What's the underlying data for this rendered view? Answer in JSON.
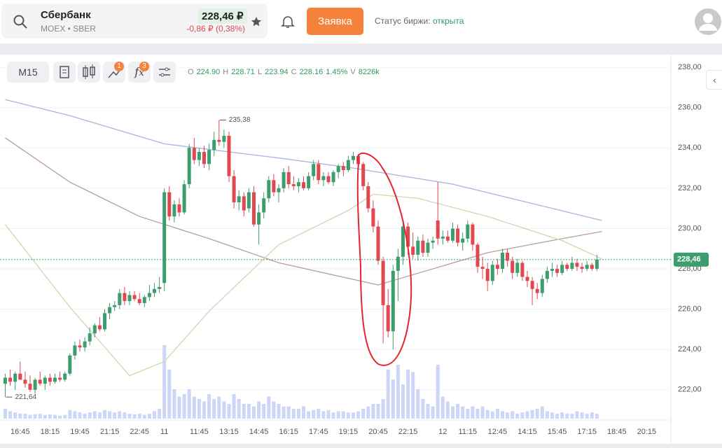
{
  "header": {
    "name": "Сбербанк",
    "ticker": "MOEX • SBER",
    "price": "228,46 ₽",
    "change": "-0,86 ₽ (0,38%)",
    "button": "Заявка",
    "status_label": "Статус биржи:",
    "status_value": "открыта"
  },
  "toolbar": {
    "interval": "M15",
    "badges": [
      "1",
      "3"
    ]
  },
  "legend": {
    "items": [
      {
        "key": "O",
        "value": "224.90"
      },
      {
        "key": "H",
        "value": "228.71"
      },
      {
        "key": "L",
        "value": "223.94"
      },
      {
        "key": "C",
        "value": "228.16"
      }
    ],
    "change": "1.45%",
    "volume_key": "V",
    "volume": "8226k"
  },
  "chart_data": {
    "type": "candlestick",
    "categories": [
      null,
      null,
      null,
      "16:45",
      null,
      null,
      null,
      null,
      null,
      "18:15",
      null,
      null,
      null,
      null,
      null,
      "19:45",
      null,
      null,
      null,
      null,
      null,
      "21:15",
      null,
      null,
      null,
      null,
      null,
      "22:45",
      null,
      null,
      null,
      null,
      "11",
      null,
      null,
      null,
      null,
      null,
      null,
      "11:45",
      null,
      null,
      null,
      null,
      null,
      "13:15",
      null,
      null,
      null,
      null,
      null,
      "14:45",
      null,
      null,
      null,
      null,
      null,
      "16:15",
      null,
      null,
      null,
      null,
      null,
      "17:45",
      null,
      null,
      null,
      null,
      null,
      "19:15",
      null,
      null,
      null,
      null,
      null,
      "20:45",
      null,
      null,
      null,
      null,
      null,
      "22:15",
      null,
      null,
      null,
      null,
      null,
      null,
      "12",
      null,
      null,
      null,
      null,
      "11:15",
      null,
      null,
      null,
      null,
      null,
      "12:45",
      null,
      null,
      null,
      null,
      null,
      "14:15",
      null,
      null,
      null,
      null,
      null,
      "15:45",
      null,
      null,
      null,
      null,
      null,
      "17:15",
      null,
      null,
      null,
      null,
      null,
      "18:45",
      null,
      null,
      null,
      null,
      null,
      "20:15",
      null,
      null,
      null,
      null
    ],
    "open": [
      222.3,
      222.6,
      222.4,
      222.8,
      222.5,
      222.3,
      222.0,
      222.5,
      222.3,
      222.6,
      222.4,
      222.6,
      222.5,
      222.8,
      223.7,
      224.2,
      224.1,
      224.4,
      224.8,
      225.2,
      225.0,
      225.8,
      226.1,
      226.2,
      226.8,
      226.4,
      226.7,
      226.5,
      226.3,
      226.6,
      226.8,
      227.0,
      227.3,
      231.8,
      230.6,
      231.2,
      230.8,
      232.2,
      234.0,
      233.4,
      233.8,
      233.2,
      233.9,
      234.4,
      234.3,
      234.6,
      232.6,
      231.3,
      231.6,
      231.0,
      231.8,
      230.2,
      230.8,
      231.5,
      232.4,
      231.8,
      232.0,
      232.8,
      232.2,
      232.1,
      232.3,
      232.0,
      232.6,
      233.2,
      232.4,
      232.6,
      232.3,
      232.8,
      233.1,
      232.9,
      233.4,
      233.6,
      233.2,
      232.1,
      231.0,
      230.1,
      228.4,
      226.2,
      224.9,
      227.9,
      228.6,
      230.1,
      229.1,
      228.7,
      229.4,
      228.8,
      229.3,
      230.4,
      229.5,
      229.6,
      229.4,
      230.0,
      229.3,
      229.5,
      230.2,
      229.2,
      228.1,
      228.0,
      227.4,
      228.2,
      228.0,
      228.8,
      228.4,
      227.8,
      228.3,
      227.6,
      227.4,
      227.0,
      226.8,
      227.5,
      227.9,
      228.0,
      227.8,
      228.2,
      228.0,
      228.3,
      228.1,
      228.0,
      228.2,
      228.0,
      null,
      null,
      null,
      null,
      null,
      null,
      null,
      null,
      null,
      null,
      null,
      null,
      null,
      null
    ],
    "high": [
      222.8,
      223.0,
      222.9,
      223.4,
      222.9,
      222.7,
      222.6,
      222.9,
      222.7,
      222.8,
      222.8,
      222.9,
      222.9,
      223.8,
      224.4,
      224.5,
      224.6,
      225.1,
      225.3,
      225.6,
      226.0,
      226.3,
      226.4,
      227.0,
      227.1,
      226.9,
      226.9,
      226.8,
      226.7,
      227.2,
      227.3,
      227.6,
      232.0,
      232.1,
      231.4,
      231.5,
      232.4,
      234.2,
      234.5,
      234.0,
      234.1,
      234.2,
      234.8,
      235.38,
      234.9,
      234.8,
      232.9,
      231.9,
      231.8,
      232.0,
      232.1,
      231.2,
      231.8,
      232.6,
      232.7,
      232.2,
      233.0,
      233.1,
      232.6,
      232.5,
      232.6,
      232.8,
      233.4,
      233.4,
      232.8,
      232.8,
      232.9,
      233.2,
      233.3,
      233.6,
      233.8,
      233.7,
      233.3,
      232.3,
      231.4,
      230.4,
      228.6,
      227.0,
      228.2,
      229.0,
      230.4,
      230.3,
      229.8,
      229.6,
      229.7,
      229.5,
      229.6,
      232.3,
      229.9,
      229.9,
      230.3,
      230.2,
      229.8,
      230.4,
      230.3,
      229.3,
      228.6,
      228.3,
      228.4,
      228.5,
      229.0,
      229.0,
      228.6,
      228.5,
      228.4,
      227.9,
      227.6,
      227.3,
      227.7,
      228.1,
      228.3,
      228.2,
      228.4,
      228.3,
      228.6,
      228.5,
      228.3,
      228.4,
      228.3,
      228.7,
      null,
      null,
      null,
      null,
      null,
      null,
      null,
      null,
      null,
      null,
      null,
      null,
      null,
      null
    ],
    "low": [
      221.64,
      222.2,
      222.0,
      222.5,
      222.1,
      221.9,
      221.8,
      222.2,
      222.0,
      222.2,
      222.3,
      222.4,
      222.4,
      222.7,
      223.5,
      223.9,
      223.9,
      224.2,
      224.6,
      224.9,
      224.9,
      225.5,
      225.9,
      226.0,
      226.2,
      226.2,
      226.4,
      226.2,
      226.1,
      226.4,
      226.6,
      226.8,
      226.9,
      230.4,
      230.3,
      230.6,
      230.7,
      232.0,
      233.2,
      233.1,
      233.0,
      232.9,
      233.6,
      234.1,
      234.0,
      232.3,
      231.0,
      230.9,
      230.6,
      230.8,
      230.1,
      229.2,
      230.5,
      231.3,
      231.6,
      231.3,
      231.8,
      232.0,
      231.9,
      231.8,
      231.9,
      231.9,
      232.4,
      232.2,
      232.1,
      232.2,
      232.1,
      232.5,
      232.6,
      232.8,
      233.2,
      233.1,
      231.9,
      230.8,
      229.8,
      228.2,
      224.3,
      224.6,
      224.0,
      226.4,
      228.2,
      228.7,
      228.5,
      228.4,
      228.6,
      228.6,
      229.0,
      229.2,
      229.2,
      229.3,
      229.3,
      229.1,
      228.9,
      229.3,
      228.9,
      227.8,
      227.5,
      226.9,
      227.2,
      227.7,
      227.8,
      228.1,
      227.5,
      227.6,
      227.4,
      227.1,
      226.2,
      226.5,
      226.6,
      227.3,
      227.6,
      227.6,
      227.7,
      227.9,
      227.9,
      227.9,
      227.8,
      227.9,
      227.9,
      227.9,
      null,
      null,
      null,
      null,
      null,
      null,
      null,
      null,
      null,
      null,
      null,
      null,
      null,
      null
    ],
    "close": [
      222.6,
      222.4,
      222.8,
      222.5,
      222.3,
      222.0,
      222.5,
      222.3,
      222.6,
      222.4,
      222.6,
      222.5,
      222.8,
      223.7,
      224.2,
      224.1,
      224.4,
      224.8,
      225.2,
      225.0,
      225.8,
      226.1,
      226.2,
      226.8,
      226.4,
      226.7,
      226.5,
      226.3,
      226.6,
      226.8,
      227.0,
      227.1,
      231.8,
      230.6,
      231.2,
      230.8,
      232.2,
      234.0,
      233.4,
      233.8,
      233.2,
      233.9,
      234.4,
      234.3,
      234.6,
      232.6,
      231.3,
      231.6,
      230.9,
      231.8,
      230.2,
      230.8,
      231.5,
      232.4,
      231.8,
      232.0,
      232.8,
      232.2,
      232.1,
      232.3,
      232.0,
      232.6,
      233.2,
      232.4,
      232.6,
      232.3,
      232.8,
      233.1,
      232.9,
      233.4,
      233.6,
      233.2,
      232.1,
      231.0,
      230.1,
      228.4,
      226.2,
      224.9,
      227.9,
      228.6,
      230.1,
      229.1,
      228.7,
      229.4,
      228.8,
      229.3,
      229.4,
      229.5,
      229.6,
      229.4,
      230.0,
      229.3,
      229.5,
      230.2,
      229.2,
      228.1,
      228.0,
      227.4,
      228.2,
      228.0,
      228.8,
      228.4,
      227.8,
      228.3,
      227.6,
      227.4,
      227.0,
      226.8,
      227.5,
      227.9,
      228.0,
      227.8,
      228.2,
      228.0,
      228.3,
      228.1,
      228.0,
      228.2,
      228.0,
      228.46,
      null,
      null,
      null,
      null,
      null,
      null,
      null,
      null,
      null,
      null,
      null,
      null,
      null,
      null
    ],
    "volume": [
      4000,
      3000,
      2500,
      2000,
      2000,
      1500,
      1800,
      2000,
      1500,
      1800,
      1500,
      1200,
      1500,
      3500,
      3000,
      2500,
      2000,
      2500,
      3000,
      2500,
      3500,
      3000,
      2500,
      3000,
      2500,
      2000,
      1800,
      2000,
      1500,
      2000,
      3000,
      4000,
      30000,
      20000,
      12000,
      9000,
      10000,
      12000,
      9000,
      8000,
      7000,
      10000,
      8000,
      9000,
      7000,
      6000,
      10000,
      8000,
      6000,
      6000,
      5000,
      7000,
      6000,
      9000,
      7000,
      6000,
      5000,
      5000,
      4000,
      4000,
      5000,
      3000,
      3500,
      4000,
      3000,
      3500,
      2500,
      3000,
      3000,
      2500,
      2500,
      3000,
      4000,
      5000,
      6000,
      6000,
      8000,
      20000,
      16000,
      22000,
      14000,
      20000,
      19000,
      12000,
      8000,
      6000,
      5000,
      22000,
      9000,
      7000,
      5000,
      6000,
      5000,
      4000,
      5000,
      4000,
      5000,
      3500,
      3000,
      4000,
      3000,
      2500,
      3000,
      2000,
      2500,
      3000,
      3500,
      4000,
      5000,
      3000,
      2500,
      2000,
      2500,
      2000,
      2000,
      3000,
      2500,
      2000,
      2500,
      2000,
      null,
      null,
      null,
      null,
      null,
      null,
      null,
      null,
      null,
      null,
      null,
      null,
      null,
      null
    ],
    "colors": {
      "up": "#3c9d6f",
      "down": "#e0474f",
      "volume": "#cdd6f6"
    },
    "lines": [
      {
        "color": "#a3b6dc",
        "x": [
          0,
          13,
          32,
          55,
          70,
          90,
          120
        ],
        "values": [
          236.4,
          235.6,
          234.2,
          233.5,
          233.0,
          232.2,
          230.4
        ]
      },
      {
        "color": "#b99c9c",
        "x": [
          0,
          13,
          27,
          41,
          55,
          75,
          86,
          97,
          112,
          120
        ],
        "values": [
          234.5,
          232.3,
          230.6,
          229.5,
          228.3,
          227.2,
          228.0,
          228.8,
          229.5,
          229.85
        ]
      },
      {
        "color": "#d2d5ab",
        "x": [
          0,
          13,
          25,
          32,
          41,
          55,
          69,
          74,
          83,
          97,
          112,
          120
        ],
        "values": [
          230.2,
          226.1,
          222.7,
          223.4,
          225.9,
          229.2,
          230.9,
          231.7,
          231.5,
          230.6,
          229.4,
          228.5
        ]
      }
    ],
    "ylim": [
      220.57,
      238.56
    ],
    "yticks": [
      {
        "value": 222,
        "label": "222,00"
      },
      {
        "value": 224,
        "label": "224,00"
      },
      {
        "value": 226,
        "label": "226,00"
      },
      {
        "value": 228,
        "label": "228,00"
      },
      {
        "value": 230,
        "label": "230,00"
      },
      {
        "value": 232,
        "label": "232,00"
      },
      {
        "value": 234,
        "label": "234,00"
      },
      {
        "value": 236,
        "label": "236,00"
      },
      {
        "value": 238,
        "label": "238,00"
      }
    ],
    "grid": true,
    "last_price": {
      "value": 228.46,
      "label": "228,46"
    },
    "annotations": [
      {
        "index": 43,
        "value": 235.38,
        "label": "235,38"
      },
      {
        "index": 0,
        "value": 221.64,
        "label": "221,64"
      }
    ]
  }
}
